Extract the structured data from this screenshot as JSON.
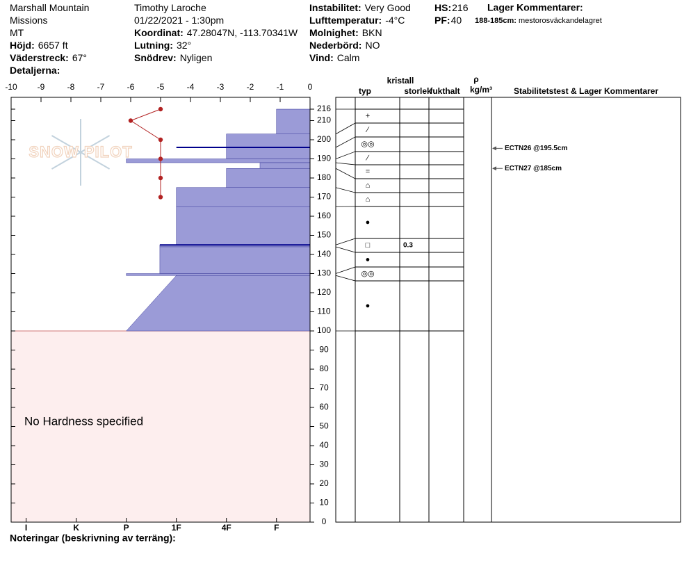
{
  "header": {
    "columns": [
      [
        {
          "value": "Marshall Mountain"
        },
        {
          "value": "Missions"
        },
        {
          "value": "MT"
        },
        {
          "label": "Höjd:",
          "value": "6657 ft"
        },
        {
          "label": "Väderstreck:",
          "value": "67°"
        },
        {
          "label": "Detaljerna:"
        }
      ],
      [
        {
          "value": "Timothy  Laroche"
        },
        {
          "value": "01/22/2021 - 1:30pm"
        },
        {
          "label": "Koordinat:",
          "value": "47.28047N, -113.70341W"
        },
        {
          "label": "Lutning:",
          "value": "32°"
        },
        {
          "label": "Snödrev:",
          "value": "Nyligen"
        }
      ],
      [
        {
          "label": "Instabilitet:",
          "value": "Very Good"
        },
        {
          "label": "Lufttemperatur:",
          "value": "-4°C"
        },
        {
          "label": "Molnighet:",
          "value": "BKN"
        },
        {
          "label": "Nederbörd:",
          "value": "NO"
        },
        {
          "label": "Vind:",
          "value": "Calm"
        }
      ],
      [
        {
          "label": "HS:",
          "value": "216"
        },
        {
          "label": "PF:",
          "value": "40"
        }
      ]
    ],
    "layer_comments": {
      "title": "Lager Kommentarer:",
      "items": [
        {
          "label": "188-185cm:",
          "value": "mestorosväckandelagret"
        }
      ]
    }
  },
  "chart_data": {
    "type": "snowpit",
    "logo": "SNOW PILOT",
    "ylim": [
      0,
      216
    ],
    "yticks": [
      0,
      10,
      20,
      30,
      40,
      50,
      60,
      70,
      80,
      90,
      100,
      110,
      120,
      130,
      140,
      150,
      160,
      170,
      180,
      190,
      200,
      210,
      216
    ],
    "temperature": {
      "xlim": [
        -10,
        0
      ],
      "xticks": [
        -10,
        -9,
        -8,
        -7,
        -6,
        -5,
        -4,
        -3,
        -2,
        -1,
        0
      ],
      "heights": [
        216,
        210,
        200,
        190,
        180,
        170
      ],
      "values": [
        -5,
        -6,
        -5,
        -5,
        -5,
        -5
      ],
      "color": "#b22222"
    },
    "hardness": {
      "xlim": [
        -0.3,
        5.67
      ],
      "xticks": [
        {
          "value": 0,
          "label": "I"
        },
        {
          "value": 1,
          "label": "K"
        },
        {
          "value": 2,
          "label": "P"
        },
        {
          "value": 3,
          "label": "1F"
        },
        {
          "value": 4,
          "label": "4F"
        },
        {
          "value": 5,
          "label": "F"
        }
      ],
      "color": "#9b9bd7",
      "no_data_note": "No Hardness specified"
    },
    "layers": [
      {
        "top": 216,
        "bottom": 203,
        "hardness": 5,
        "grain": "+"
      },
      {
        "top": 203,
        "bottom": 196,
        "hardness": 4,
        "grain": "∕"
      },
      {
        "top": 196,
        "bottom": 190,
        "hardness": 4,
        "grain": "◎◎"
      },
      {
        "top": 190,
        "bottom": 188,
        "hardness": 2,
        "grain": "∕"
      },
      {
        "top": 188,
        "bottom": 185,
        "hardness": 4.67,
        "grain": "="
      },
      {
        "top": 185,
        "bottom": 175,
        "hardness": 4,
        "grain": "⌂"
      },
      {
        "top": 175,
        "bottom": 165,
        "hardness": 3,
        "grain": "⌂"
      },
      {
        "top": 165,
        "bottom": 145,
        "hardness": 3,
        "grain": "●"
      },
      {
        "top": 145,
        "bottom": 144,
        "hardness": 2.67,
        "grain": "□",
        "size": 0.3
      },
      {
        "top": 144,
        "bottom": 130,
        "hardness": 2.67,
        "grain": "●"
      },
      {
        "top": 130,
        "bottom": 129,
        "hardness": 2,
        "grain": "◎◎"
      },
      {
        "top": 129,
        "bottom": 100,
        "hardness": 3,
        "hardness_bottom": 2,
        "grain": "●"
      }
    ],
    "concern_lines": [
      {
        "height": 196,
        "hardness": 3
      },
      {
        "height": 145,
        "hardness": 2.67
      }
    ],
    "column_headers": [
      [
        "typ"
      ],
      [
        "kristall",
        "storlek"
      ],
      [
        "fukthalt"
      ],
      [
        "ρ",
        "kg/m³"
      ],
      [
        "Stabilitetstest & Lager Kommentarer"
      ]
    ],
    "stability_tests": [
      {
        "label": "ECTN26 @195.5cm",
        "height": 195.5
      },
      {
        "label": "ECTN27 @185cm",
        "height": 185
      }
    ],
    "notes_label": "Noteringar (beskrivning av terräng):"
  }
}
